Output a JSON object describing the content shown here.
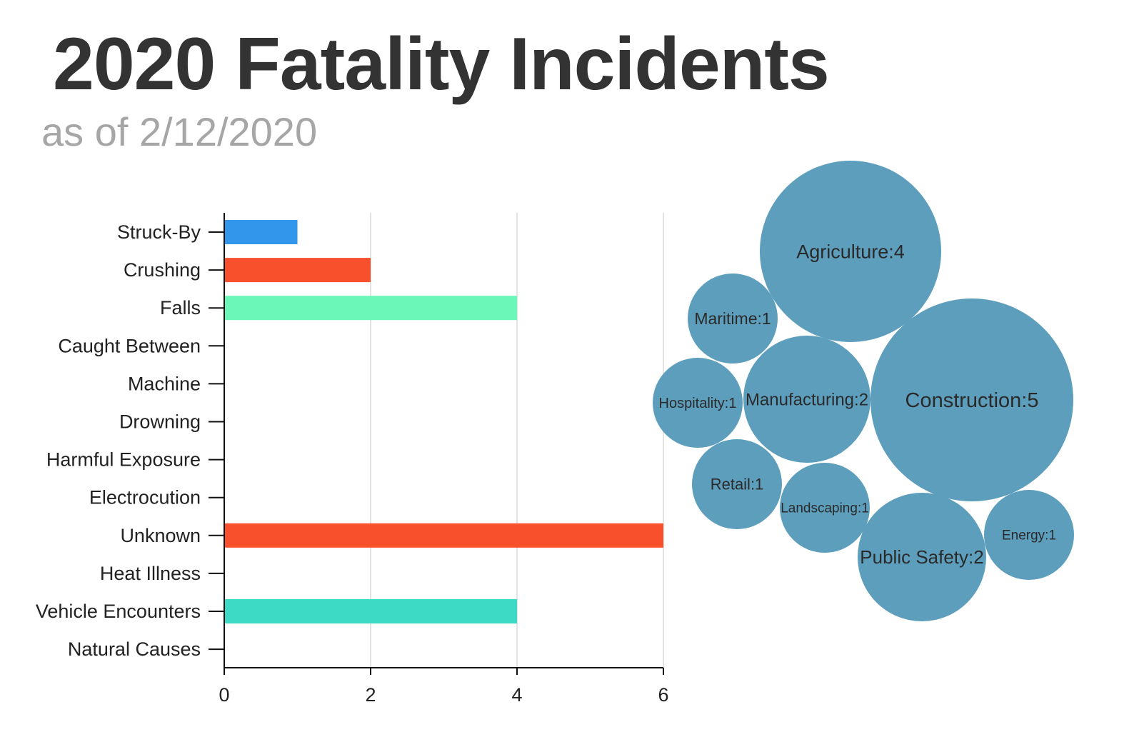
{
  "title": "2020 Fatality Incidents",
  "subtitle": "as of 2/12/2020",
  "chart_data": [
    {
      "type": "bar",
      "orientation": "horizontal",
      "categories": [
        "Struck-By",
        "Crushing",
        "Falls",
        "Caught Between",
        "Machine",
        "Drowning",
        "Harmful Exposure",
        "Electrocution",
        "Unknown",
        "Heat Illness",
        "Vehicle Encounters",
        "Natural Causes"
      ],
      "values": [
        1,
        2,
        4,
        0,
        0,
        0,
        0,
        0,
        6,
        0,
        4,
        0
      ],
      "colors": [
        "#3296ea",
        "#f84f2c",
        "#6af7b8",
        "#3296ea",
        "#3296ea",
        "#3296ea",
        "#3296ea",
        "#3296ea",
        "#f84f2c",
        "#3296ea",
        "#3ddbc5",
        "#3296ea"
      ],
      "xlim": [
        0,
        6
      ],
      "xticks": [
        0,
        2,
        4,
        6
      ],
      "grid": true,
      "xlabel": "",
      "ylabel": ""
    },
    {
      "type": "bubble",
      "color": "#5d9ebd",
      "items": [
        {
          "label": "Agriculture:4",
          "name": "Agriculture",
          "value": 4
        },
        {
          "label": "Maritime:1",
          "name": "Maritime",
          "value": 1
        },
        {
          "label": "Construction:5",
          "name": "Construction",
          "value": 5
        },
        {
          "label": "Manufacturing:2",
          "name": "Manufacturing",
          "value": 2
        },
        {
          "label": "Hospitality:1",
          "name": "Hospitality",
          "value": 1
        },
        {
          "label": "Retail:1",
          "name": "Retail",
          "value": 1
        },
        {
          "label": "Landscaping:1",
          "name": "Landscaping",
          "value": 1
        },
        {
          "label": "Public Safety:2",
          "name": "Public Safety",
          "value": 2
        },
        {
          "label": "Energy:1",
          "name": "Energy",
          "value": 1
        }
      ]
    }
  ]
}
